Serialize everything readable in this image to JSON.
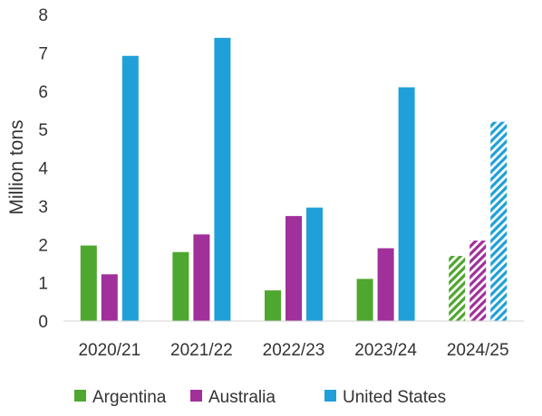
{
  "chart_data": {
    "type": "bar",
    "categories": [
      "2020/21",
      "2021/22",
      "2022/23",
      "2023/24",
      "2024/25"
    ],
    "series": [
      {
        "name": "Argentina",
        "color": "#4ea72e",
        "values": [
          1.97,
          1.8,
          0.8,
          1.1,
          1.7
        ]
      },
      {
        "name": "Australia",
        "color": "#a0309a",
        "values": [
          1.22,
          2.26,
          2.74,
          1.9,
          2.1
        ]
      },
      {
        "name": "United States",
        "color": "#1fa0d8",
        "values": [
          6.92,
          7.39,
          2.96,
          6.1,
          5.2
        ]
      }
    ],
    "hatched_categories": [
      "2024/25"
    ],
    "ylabel": "Million tons",
    "xlabel": "",
    "ylim": [
      0,
      8
    ],
    "yticks": [
      "0",
      "1",
      "2",
      "3",
      "4",
      "5",
      "6",
      "7",
      "8"
    ],
    "grid": false,
    "legend_position": "bottom"
  }
}
